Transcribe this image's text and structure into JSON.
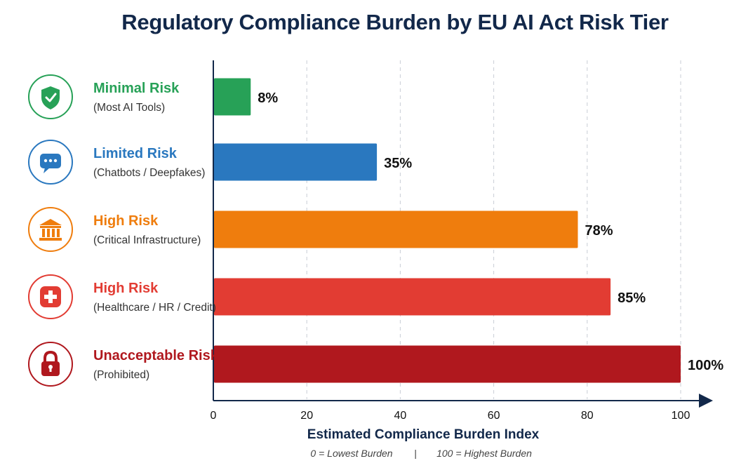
{
  "chart_data": {
    "type": "bar",
    "orientation": "horizontal",
    "title": "Regulatory Compliance Burden by EU AI Act Risk Tier",
    "xlabel": "Estimated Compliance Burden Index",
    "ylabel": "",
    "xlim": [
      0,
      100
    ],
    "x_ticks": [
      0,
      20,
      40,
      60,
      80,
      100
    ],
    "grid": "vertical dashed",
    "categories": [
      {
        "name": "Minimal Risk",
        "sub": "(Most AI Tools)",
        "value": 8,
        "label": "8%",
        "color": "#27a157",
        "icon": "shield-check-icon"
      },
      {
        "name": "Limited Risk",
        "sub": "(Chatbots / Deepfakes)",
        "value": 35,
        "label": "35%",
        "color": "#2a78bf",
        "icon": "chat-bubble-icon"
      },
      {
        "name": "High Risk",
        "sub": "(Critical Infrastructure)",
        "value": 78,
        "label": "78%",
        "color": "#ef7d0d",
        "icon": "bank-building-icon"
      },
      {
        "name": "High Risk",
        "sub": "(Healthcare / HR / Credit)",
        "value": 85,
        "label": "85%",
        "color": "#e23c33",
        "icon": "medical-cross-icon"
      },
      {
        "name": "Unacceptable Risk",
        "sub": "(Prohibited)",
        "value": 100,
        "label": "100%",
        "color": "#b0181e",
        "icon": "padlock-icon"
      }
    ],
    "scale_note_low": "0 = Lowest Burden",
    "scale_note_high": "100 = Highest Burden",
    "scale_note_separator": "|"
  }
}
